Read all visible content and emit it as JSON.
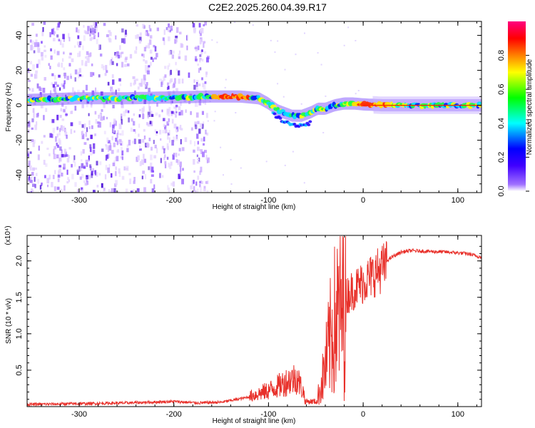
{
  "title": "C2E2.2025.260.04.39.R17",
  "chart_data": [
    {
      "type": "heatmap",
      "xlabel": "Height of straight line (km)",
      "ylabel": "Frequency (Hz)",
      "xlim": [
        -355,
        125
      ],
      "ylim": [
        -50,
        48
      ],
      "xticks": [
        -300,
        -200,
        -100,
        0,
        100
      ],
      "yticks": [
        -40,
        -20,
        0,
        20,
        40
      ],
      "grid": false,
      "colorbar": {
        "label": "Normalized spectral amplitude",
        "range": [
          0,
          1
        ],
        "ticks": [
          "0.0",
          "0.2",
          "0.4",
          "0.6",
          "0.8"
        ],
        "colors": [
          "#ffffff",
          "#a070ff",
          "#4000ff",
          "#0000ff",
          "#00ffff",
          "#00ff00",
          "#ffff00",
          "#ff8000",
          "#ff0000",
          "#ff0080"
        ]
      },
      "ridge": {
        "x": [
          -355,
          -300,
          -250,
          -200,
          -160,
          -130,
          -110,
          -100,
          -90,
          -75,
          -65,
          -55,
          -48,
          -40,
          -30,
          -20,
          -10,
          0,
          20,
          60,
          125
        ],
        "y": [
          3,
          4,
          4,
          4.5,
          5,
          5,
          4,
          1,
          -3,
          -6,
          -6,
          -4,
          -2,
          -2,
          0,
          1,
          1,
          0.5,
          0,
          0,
          0
        ],
        "max_amplitude_region_x": [
          -160,
          -120
        ]
      }
    },
    {
      "type": "line",
      "xlabel": "Height of straight line (km)",
      "ylabel": "SNR (10 * v/v)",
      "y_multiplier": "(x10⁴)",
      "xlim": [
        -355,
        125
      ],
      "ylim": [
        0,
        2.35
      ],
      "xticks": [
        -300,
        -200,
        -100,
        0,
        100
      ],
      "yticks": [
        "0.5",
        "1.0",
        "1.5",
        "2.0"
      ],
      "grid": false,
      "color": "#e8302a",
      "series": [
        {
          "x": [
            -355,
            -300,
            -250,
            -200,
            -175,
            -150,
            -125,
            -110,
            -100,
            -90,
            -80,
            -70,
            -60,
            -50,
            -45,
            -40,
            -35,
            -30,
            -25,
            -20,
            -15,
            -10,
            -5,
            0,
            10,
            20,
            30,
            40,
            50,
            70,
            90,
            110,
            125
          ],
          "y": [
            0.03,
            0.04,
            0.05,
            0.07,
            0.05,
            0.06,
            0.12,
            0.18,
            0.22,
            0.28,
            0.35,
            0.4,
            0.1,
            0.05,
            0.3,
            0.6,
            1.0,
            1.3,
            1.45,
            1.5,
            1.6,
            1.65,
            1.7,
            1.75,
            1.85,
            1.95,
            2.05,
            2.12,
            2.14,
            2.13,
            2.12,
            2.1,
            2.05
          ]
        }
      ]
    }
  ]
}
